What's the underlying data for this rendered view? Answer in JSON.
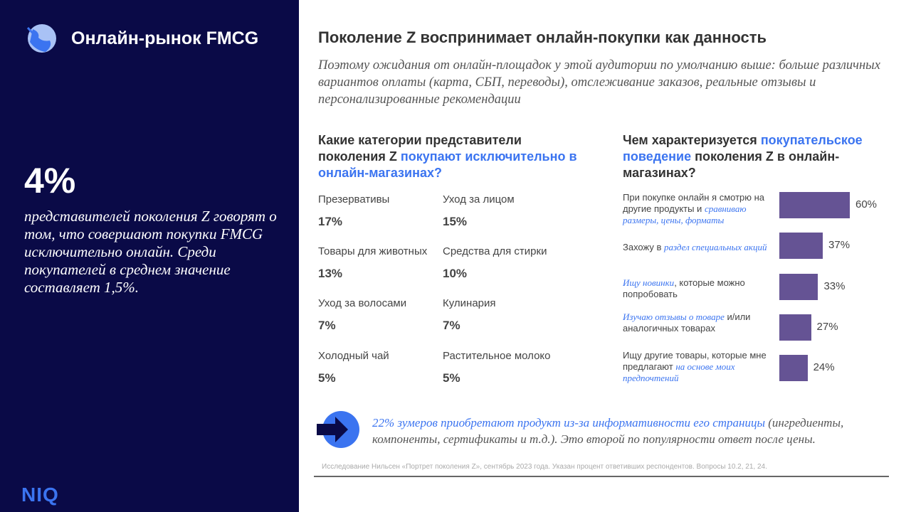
{
  "sidebar": {
    "brand": "Онлайн-рынок FMCG",
    "big_stat": "4%",
    "statement": "представителей поколения Z говорят о том, что совершают покупки FMCG исключительно онлайн. Среди покупателей в среднем значение составляет 1,5%.",
    "logo": "NIQ",
    "colors": {
      "background": "#0a0a47",
      "accent": "#3b74f0"
    }
  },
  "main": {
    "title": "Поколение Z воспринимает онлайн-покупки как данность",
    "subtitle": "Поэтому ожидания от онлайн-площадок у этой аудитории по умолчанию выше: больше различных вариантов оплаты (карта, СБП, переводы), отслеживание заказов, реальные отзывы и персонализированные рекомендации"
  },
  "categories": {
    "heading_plain": "Какие категории представители поколения Z ",
    "heading_blue": "покупают исключительно в онлайн-магазинах?",
    "items": [
      {
        "label": "Презервативы",
        "value": "17%"
      },
      {
        "label": "Уход за лицом",
        "value": "15%"
      },
      {
        "label": "Товары для животных",
        "value": "13%"
      },
      {
        "label": "Средства для стирки",
        "value": "10%"
      },
      {
        "label": "Уход за волосами",
        "value": "7%"
      },
      {
        "label": "Кулинария",
        "value": "7%"
      },
      {
        "label": "Холодный чай",
        "value": "5%"
      },
      {
        "label": "Растительное молоко",
        "value": "5%"
      }
    ]
  },
  "behavior": {
    "heading_a": "Чем характеризуется ",
    "heading_blue": "покупательское поведение",
    "heading_b": " поколения Z в онлайн-магазинах?"
  },
  "chart_data": {
    "type": "bar",
    "orientation": "horizontal",
    "bar_color": "#655394",
    "categories": [
      {
        "plain": "При покупке онлайн я смотрю на другие продукты и ",
        "blue": "сравниваю размеры, цены, форматы",
        "after": ""
      },
      {
        "plain": "Захожу в ",
        "blue": "раздел специальных акций",
        "after": ""
      },
      {
        "plain": "",
        "blue": "Ищу новинки",
        "after": ", которые можно попробовать"
      },
      {
        "plain": "",
        "blue": "Изучаю отзывы о товаре",
        "after": " и/или аналогичных товарах"
      },
      {
        "plain": "Ищу другие товары, которые мне предлагают ",
        "blue": "на основе моих предпочтений",
        "after": ""
      }
    ],
    "values": [
      60,
      37,
      33,
      27,
      24
    ],
    "labels": [
      "60%",
      "37%",
      "33%",
      "27%",
      "24%"
    ]
  },
  "note": {
    "blue": "22% зумеров приобретают продукт из-за информативности его страницы",
    "rest": " (ингредиенты, компоненты, сертификаты и т.д.). Это второй по популярности ответ после цены."
  },
  "source": "Исследование Нильсен «Портрет поколения Z», сентябрь 2023 года. Указан процент ответивших респондентов. Вопросы 10.2, 21, 24."
}
